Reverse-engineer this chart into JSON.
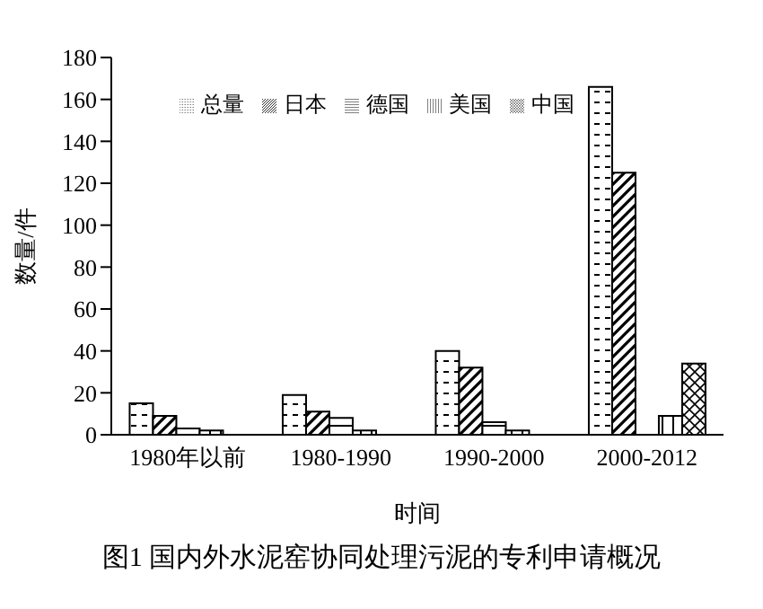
{
  "chart_data": {
    "type": "bar",
    "xlabel": "时间",
    "ylabel": "数量/件",
    "categories": [
      "1980年以前",
      "1980-1990",
      "1990-2000",
      "2000-2012"
    ],
    "series": [
      {
        "name": "总量",
        "color": "#000000",
        "values": [
          15,
          19,
          40,
          166
        ]
      },
      {
        "name": "日本",
        "color": "#000000",
        "values": [
          9,
          11,
          32,
          125
        ]
      },
      {
        "name": "德国",
        "color": "#000000",
        "values": [
          3,
          8,
          6,
          0
        ]
      },
      {
        "name": "美国",
        "color": "#000000",
        "values": [
          2,
          2,
          2,
          9
        ]
      },
      {
        "name": "中国",
        "color": "#000000",
        "values": [
          0,
          0,
          0,
          34
        ]
      }
    ],
    "ylim": [
      0,
      180
    ],
    "yticks": [
      0,
      20,
      40,
      60,
      80,
      100,
      120,
      140,
      160,
      180
    ],
    "grid": false,
    "legend": "top left",
    "annotations": [
      "图1  国内外水泥窑协同处理污泥的专利申请概况"
    ]
  }
}
